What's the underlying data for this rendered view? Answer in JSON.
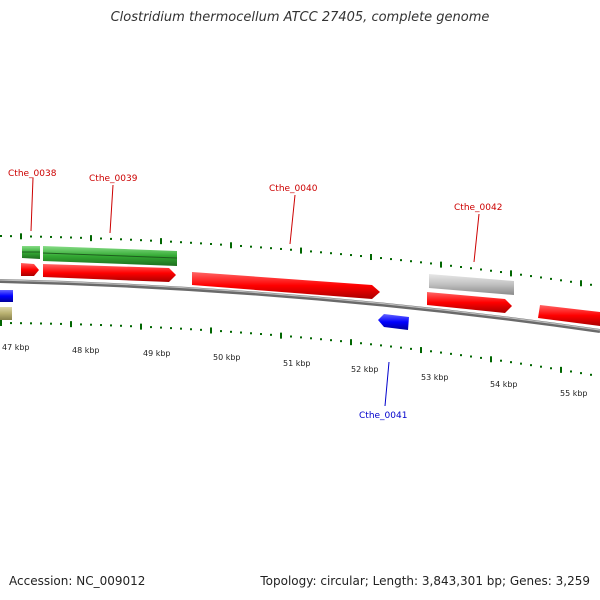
{
  "title": "Clostridium thermocellum ATCC 27405, complete genome",
  "footer": {
    "accession": "Accession: NC_009012",
    "topology": "Topology: circular; Length: 3,843,301 bp; Genes: 3,259"
  },
  "kbp_labels": [
    "47 kbp",
    "48 kbp",
    "49 kbp",
    "50 kbp",
    "51 kbp",
    "52 kbp",
    "53 kbp",
    "54 kbp",
    "55 kbp"
  ],
  "genes": [
    {
      "id": "Cthe_0038",
      "color": "#cc0000"
    },
    {
      "id": "Cthe_0039",
      "color": "#cc0000"
    },
    {
      "id": "Cthe_0040",
      "color": "#cc0000"
    },
    {
      "id": "Cthe_0041",
      "color": "#0000cc"
    },
    {
      "id": "Cthe_0042",
      "color": "#cc0000"
    }
  ],
  "colors": {
    "cds": "#ff0000",
    "rrna": "#33aa33",
    "pseudo": "#c0c0c0",
    "reverse_cds": "#0000ff",
    "other": "#b8b070",
    "tick": "#006600",
    "backbone": "#888888"
  }
}
